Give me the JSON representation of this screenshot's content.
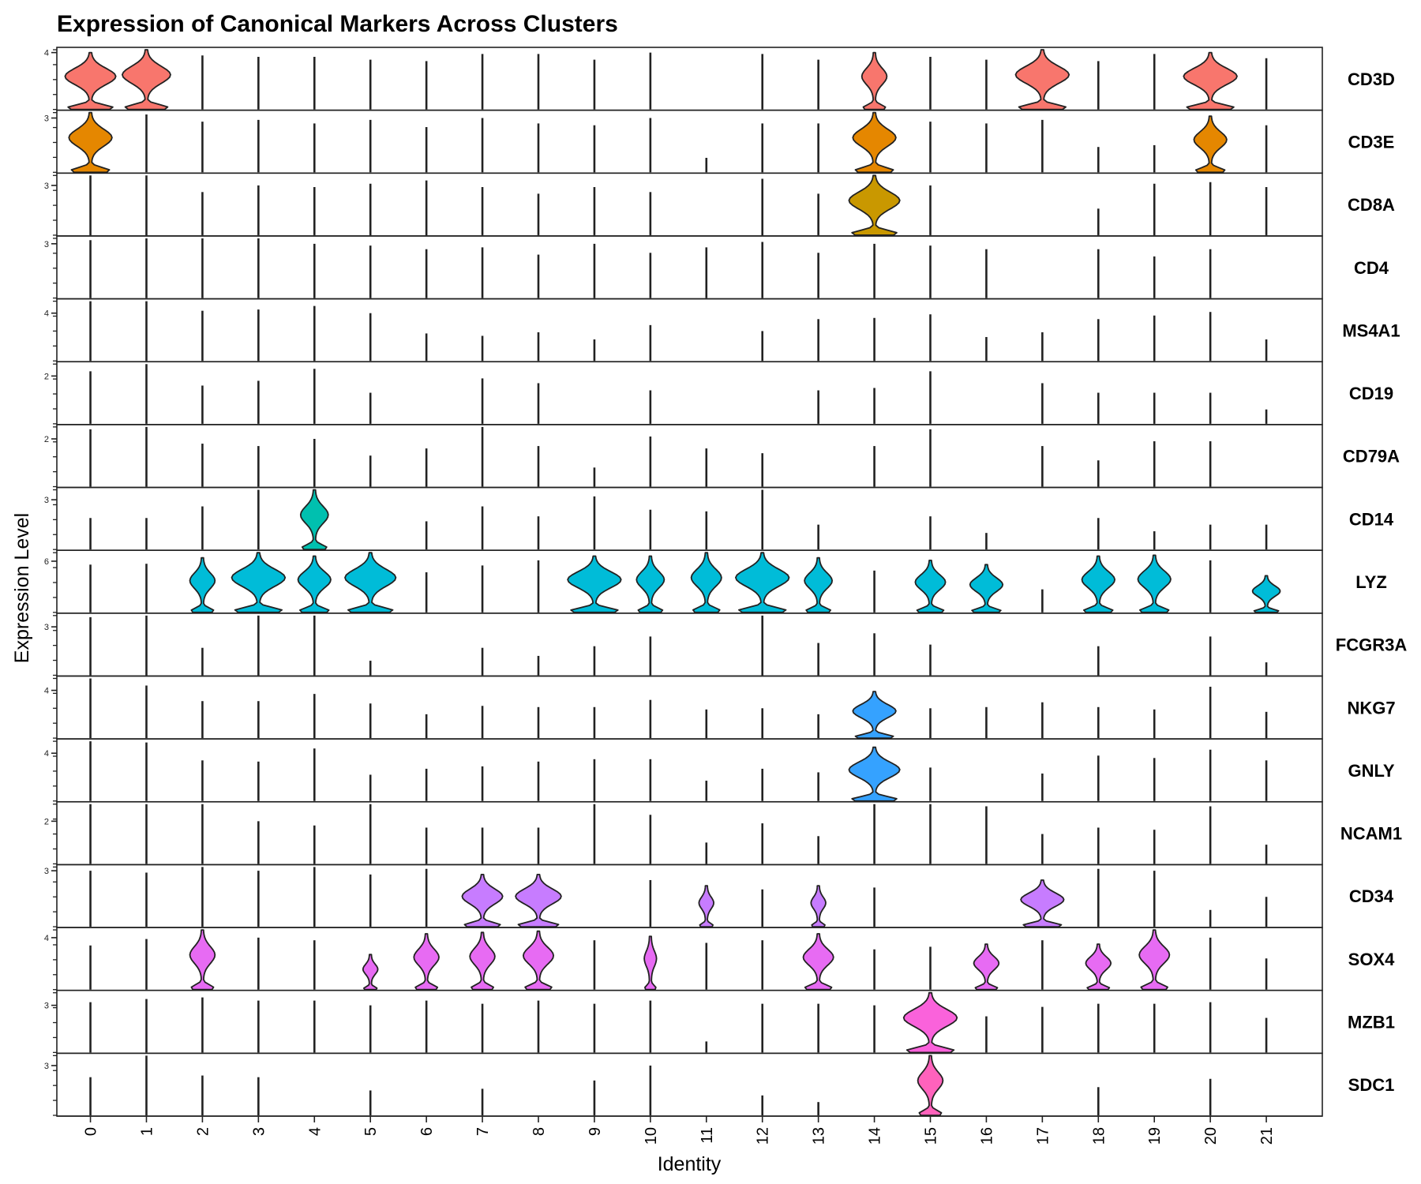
{
  "chart_data": {
    "type": "violin",
    "title": "Expression of Canonical Markers Across Clusters",
    "xlabel": "Identity",
    "ylabel": "Expression Level",
    "clusters": [
      "0",
      "1",
      "2",
      "3",
      "4",
      "5",
      "6",
      "7",
      "8",
      "9",
      "10",
      "11",
      "12",
      "13",
      "14",
      "15",
      "16",
      "17",
      "18",
      "19",
      "20",
      "21"
    ],
    "genes": [
      {
        "name": "CD3D",
        "tick": "4",
        "ymax": 4.2,
        "color": "#F8766D",
        "max": [
          4.0,
          4.2,
          3.8,
          3.7,
          3.7,
          3.5,
          3.4,
          3.9,
          3.9,
          3.5,
          4.0,
          0,
          3.9,
          3.5,
          4.0,
          3.7,
          3.5,
          4.2,
          3.4,
          3.9,
          4.0,
          3.6
        ],
        "width": [
          0.95,
          0.9,
          0,
          0,
          0,
          0,
          0,
          0,
          0,
          0,
          0,
          0,
          0,
          0,
          0.45,
          0,
          0,
          1.0,
          0,
          0,
          1.0,
          0
        ]
      },
      {
        "name": "CD3E",
        "tick": "3",
        "ymax": 3.3,
        "color": "#E58700",
        "max": [
          3.3,
          3.2,
          2.8,
          2.9,
          2.7,
          2.9,
          2.5,
          3.0,
          2.7,
          2.6,
          3.0,
          0.8,
          2.7,
          2.7,
          3.3,
          2.8,
          2.7,
          2.9,
          1.4,
          1.5,
          3.1,
          2.6
        ],
        "width": [
          0.8,
          0,
          0,
          0,
          0,
          0,
          0,
          0,
          0,
          0,
          0,
          0,
          0,
          0,
          0.8,
          0,
          0,
          0,
          0,
          0,
          0.6,
          0
        ]
      },
      {
        "name": "CD8A",
        "tick": "3",
        "ymax": 3.6,
        "color": "#C99800",
        "max": [
          3.6,
          3.6,
          2.6,
          3.0,
          2.9,
          3.1,
          3.3,
          2.9,
          2.5,
          2.9,
          2.6,
          0,
          3.4,
          2.5,
          3.6,
          3.0,
          0,
          0,
          1.6,
          3.1,
          3.2,
          2.9
        ],
        "width": [
          0,
          0,
          0,
          0,
          0,
          0,
          0,
          0,
          0,
          0,
          0,
          0,
          0,
          0,
          0.95,
          0,
          0,
          0,
          0,
          0,
          0,
          0
        ]
      },
      {
        "name": "CD4",
        "tick": "3",
        "ymax": 3.3,
        "color": "#A3A500",
        "max": [
          3.2,
          3.3,
          3.3,
          3.3,
          3.0,
          2.9,
          2.7,
          2.8,
          2.4,
          3.0,
          2.5,
          2.8,
          3.1,
          2.5,
          3.0,
          2.9,
          2.7,
          0,
          2.7,
          2.3,
          2.7,
          0
        ],
        "width": [
          0,
          0,
          0,
          0,
          0,
          0,
          0,
          0,
          0,
          0,
          0,
          0,
          0,
          0,
          0,
          0,
          0,
          0,
          0,
          0,
          0,
          0
        ]
      },
      {
        "name": "MS4A1",
        "tick": "4",
        "ymax": 5.0,
        "color": "#6BB100",
        "max": [
          5.0,
          5.0,
          4.2,
          4.3,
          4.6,
          4.0,
          2.3,
          2.1,
          2.4,
          1.8,
          3.0,
          0,
          2.5,
          3.5,
          3.6,
          3.9,
          2.0,
          2.4,
          3.5,
          3.8,
          4.1,
          1.8
        ],
        "width": [
          0,
          0,
          0,
          0,
          0,
          0,
          0,
          0,
          0,
          0,
          0,
          0,
          0,
          0,
          0,
          0,
          0,
          0,
          0,
          0,
          0,
          0
        ]
      },
      {
        "name": "CD19",
        "tick": "2",
        "ymax": 2.5,
        "color": "#00BA38",
        "max": [
          2.2,
          2.5,
          1.6,
          1.8,
          2.3,
          1.3,
          0,
          1.9,
          1.7,
          0,
          1.4,
          0,
          0,
          1.4,
          1.5,
          2.2,
          0,
          1.7,
          1.3,
          1.3,
          1.3,
          0.6
        ],
        "width": [
          0,
          0,
          0,
          0,
          0,
          0,
          0,
          0,
          0,
          0,
          0,
          0,
          0,
          0,
          0,
          0,
          0,
          0,
          0,
          0,
          0,
          0
        ]
      },
      {
        "name": "CD79A",
        "tick": "2",
        "ymax": 2.5,
        "color": "#00BF7D",
        "max": [
          2.4,
          2.5,
          1.8,
          1.7,
          2.0,
          1.3,
          1.6,
          2.5,
          1.7,
          0.8,
          2.1,
          1.6,
          1.4,
          0,
          1.7,
          2.4,
          0,
          1.7,
          1.1,
          1.9,
          1.9,
          0
        ],
        "width": [
          0,
          0,
          0,
          0,
          0,
          0,
          0,
          0,
          0,
          0,
          0,
          0,
          0,
          0,
          0,
          0,
          0,
          0,
          0,
          0,
          0,
          0
        ]
      },
      {
        "name": "CD14",
        "tick": "3",
        "ymax": 3.6,
        "color": "#00C0AF",
        "max": [
          1.9,
          1.9,
          2.6,
          3.6,
          3.6,
          0,
          1.7,
          2.6,
          2.0,
          3.2,
          2.4,
          2.3,
          3.6,
          1.5,
          0,
          2.0,
          1.0,
          0,
          1.9,
          1.1,
          1.5,
          1.5
        ],
        "width": [
          0,
          0,
          0,
          0,
          0.5,
          0,
          0,
          0,
          0,
          0,
          0,
          0,
          0,
          0,
          0,
          0,
          0,
          0,
          0,
          0,
          0,
          0
        ]
      },
      {
        "name": "LYZ",
        "tick": "6",
        "ymax": 7.0,
        "color": "#00BCD8",
        "max": [
          5.6,
          5.7,
          6.4,
          7.0,
          6.6,
          7.0,
          4.7,
          5.5,
          6.1,
          6.6,
          6.6,
          7.0,
          7.0,
          6.4,
          4.9,
          6.1,
          5.6,
          2.7,
          6.6,
          6.7,
          6.1,
          4.3
        ],
        "width": [
          0,
          0,
          0.45,
          1.0,
          0.6,
          0.95,
          0,
          0,
          0,
          1.0,
          0.5,
          0.55,
          1.0,
          0.5,
          0,
          0.55,
          0.6,
          0,
          0.6,
          0.6,
          0,
          0.5
        ]
      },
      {
        "name": "FCGR3A",
        "tick": "3",
        "ymax": 3.7,
        "color": "#00B0F6",
        "max": [
          3.6,
          3.7,
          1.7,
          3.7,
          3.7,
          0.9,
          0,
          1.7,
          1.2,
          1.8,
          2.4,
          0,
          3.7,
          2.0,
          2.6,
          1.9,
          0,
          0,
          1.8,
          0,
          2.4,
          0.8
        ],
        "width": [
          0,
          0,
          0,
          0,
          0,
          0,
          0,
          0,
          0,
          0,
          0,
          0,
          0,
          0,
          0,
          0,
          0,
          0,
          0,
          0,
          0,
          0
        ]
      },
      {
        "name": "NKG7",
        "tick": "4",
        "ymax": 5.0,
        "color": "#35A2FF",
        "max": [
          5.0,
          4.4,
          3.1,
          3.1,
          3.7,
          2.9,
          2.0,
          2.7,
          2.6,
          2.6,
          3.2,
          2.4,
          2.5,
          2.0,
          3.9,
          2.5,
          2.6,
          3.0,
          2.6,
          2.4,
          4.3,
          2.2
        ],
        "width": [
          0,
          0,
          0,
          0,
          0,
          0,
          0,
          0,
          0,
          0,
          0,
          0,
          0,
          0,
          0.8,
          0,
          0,
          0,
          0,
          0,
          0,
          0
        ]
      },
      {
        "name": "GNLY",
        "tick": "4",
        "ymax": 5.0,
        "color": "#35A2FF",
        "max": [
          5.0,
          4.9,
          3.4,
          3.3,
          4.4,
          2.2,
          2.7,
          2.9,
          3.3,
          3.5,
          3.5,
          1.7,
          2.7,
          2.4,
          4.5,
          2.8,
          0,
          2.3,
          3.8,
          3.6,
          4.3,
          3.4
        ],
        "width": [
          0,
          0,
          0,
          0,
          0,
          0,
          0,
          0,
          0,
          0,
          0,
          0,
          0,
          0,
          0.95,
          0,
          0,
          0,
          0,
          0,
          0,
          0
        ]
      },
      {
        "name": "NCAM1",
        "tick": "2",
        "ymax": 2.8,
        "color": "#9590FF",
        "max": [
          2.8,
          2.8,
          2.8,
          2.0,
          1.8,
          2.8,
          1.7,
          1.7,
          1.7,
          2.8,
          2.3,
          1.0,
          1.9,
          1.3,
          2.8,
          2.8,
          2.7,
          1.4,
          1.7,
          1.6,
          2.7,
          0.9
        ],
        "width": [
          0,
          0,
          0,
          0,
          0,
          0,
          0,
          0,
          0,
          0,
          0,
          0,
          0,
          0,
          0,
          0,
          0,
          0,
          0,
          0,
          0,
          0
        ]
      },
      {
        "name": "CD34",
        "tick": "3",
        "ymax": 3.2,
        "color": "#C77CFF",
        "max": [
          3.0,
          2.9,
          3.2,
          3.0,
          3.2,
          2.8,
          3.1,
          2.8,
          2.8,
          0,
          2.5,
          2.2,
          2.0,
          2.2,
          2.1,
          0,
          0,
          2.5,
          3.1,
          3.0,
          0.9,
          1.6
        ],
        "width": [
          0,
          0,
          0,
          0,
          0,
          0,
          0,
          0.75,
          0.85,
          0,
          0,
          0.25,
          0,
          0.25,
          0,
          0,
          0,
          0.8,
          0,
          0,
          0,
          0
        ]
      },
      {
        "name": "SOX4",
        "tick": "4",
        "ymax": 4.6,
        "color": "#E76BF3",
        "max": [
          3.4,
          3.9,
          4.6,
          4.0,
          3.8,
          2.7,
          4.3,
          4.4,
          4.5,
          3.8,
          4.1,
          3.6,
          3.8,
          4.3,
          3.1,
          3.3,
          3.5,
          3.8,
          3.5,
          4.6,
          4.0,
          2.4
        ],
        "width": [
          0,
          0,
          0.45,
          0,
          0,
          0.25,
          0.45,
          0.45,
          0.55,
          0,
          0.2,
          0,
          0,
          0.55,
          0,
          0,
          0.45,
          0,
          0.45,
          0.55,
          0,
          0
        ]
      },
      {
        "name": "MZB1",
        "tick": "3",
        "ymax": 3.8,
        "color": "#FA62DB",
        "max": [
          3.2,
          3.4,
          3.5,
          3.3,
          3.3,
          3.0,
          3.3,
          3.1,
          3.3,
          3.1,
          3.3,
          0.7,
          3.1,
          3.1,
          3.0,
          3.8,
          2.3,
          2.9,
          3.1,
          3.1,
          3.2,
          2.2
        ],
        "width": [
          0,
          0,
          0,
          0,
          0,
          0,
          0,
          0,
          0,
          0,
          0,
          0,
          0,
          0,
          0,
          1.0,
          0,
          0,
          0,
          0,
          0,
          0
        ]
      },
      {
        "name": "SDC1",
        "tick": "3",
        "ymax": 3.6,
        "color": "#FF62BC",
        "max": [
          2.3,
          3.6,
          2.4,
          2.3,
          0,
          1.5,
          0,
          1.6,
          0,
          2.1,
          3.0,
          0,
          1.2,
          0.8,
          0,
          3.6,
          0,
          0,
          1.7,
          0,
          2.2,
          0
        ],
        "width": [
          0,
          0,
          0,
          0,
          0,
          0,
          0,
          0,
          0,
          0,
          0,
          0,
          0,
          0,
          0,
          0.45,
          0,
          0,
          0,
          0,
          0,
          0
        ]
      }
    ]
  }
}
